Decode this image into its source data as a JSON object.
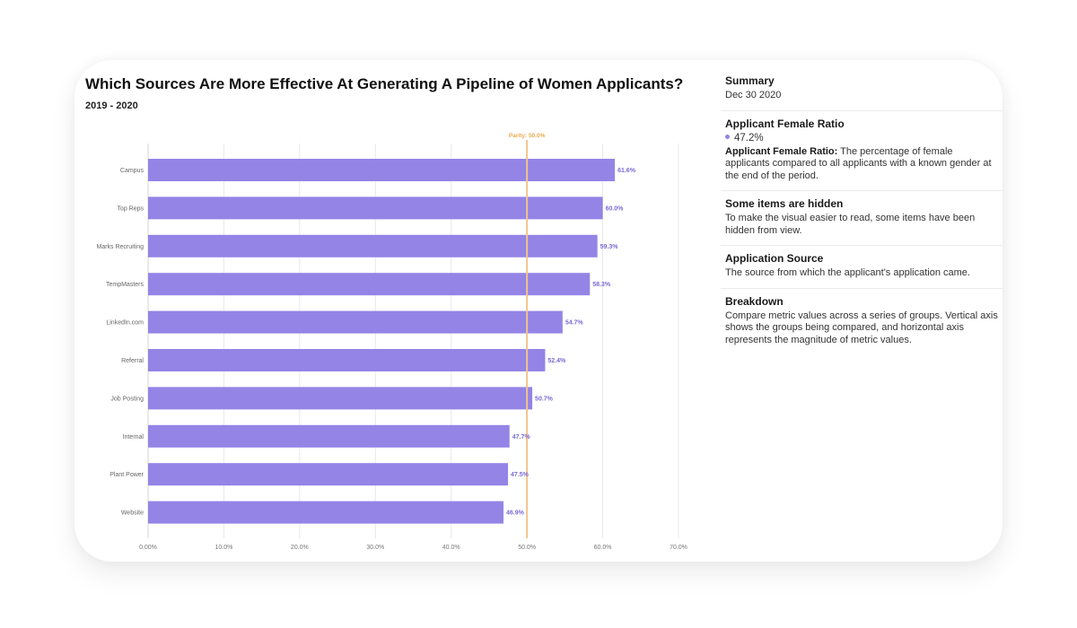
{
  "header": {
    "title": "Which Sources Are More Effective At Generating A Pipeline of Women Applicants?",
    "subtitle": "2019 - 2020"
  },
  "colors": {
    "bar": "#9384e6",
    "bar_label": "#7b6ad6",
    "parity": "#f2c48a",
    "parity_label": "#eaa94c",
    "grid": "#e8e8e8",
    "axis_text": "#777777"
  },
  "chart_data": {
    "type": "bar",
    "orientation": "horizontal",
    "title": "Which Sources Are More Effective At Generating A Pipeline of Women Applicants?",
    "subtitle": "2019 - 2020",
    "xlabel": "",
    "ylabel": "",
    "categories": [
      "Campus",
      "Top Reps",
      "Marks Recruiting",
      "TempMasters",
      "LinkedIn.com",
      "Referral",
      "Job Posting",
      "Internal",
      "Plant Power",
      "Website"
    ],
    "values": [
      61.6,
      60.0,
      59.3,
      58.3,
      54.7,
      52.4,
      50.7,
      47.7,
      47.5,
      46.9
    ],
    "value_labels": [
      "61.6%",
      "60.0%",
      "59.3%",
      "58.3%",
      "54.7%",
      "52.4%",
      "50.7%",
      "47.7%",
      "47.5%",
      "46.9%"
    ],
    "xlim": [
      0,
      70
    ],
    "xticks": [
      0,
      10,
      20,
      30,
      40,
      50,
      60,
      70
    ],
    "xtick_labels": [
      "0.00%",
      "10.0%",
      "20.0%",
      "30.0%",
      "40.0%",
      "50.0%",
      "60.0%",
      "70.0%"
    ],
    "grid": true,
    "reference_line": {
      "value": 50.0,
      "label": "Parity: 50.0%"
    }
  },
  "sidebar": {
    "summary": {
      "title": "Summary",
      "date": "Dec 30 2020"
    },
    "metric": {
      "title": "Applicant Female Ratio",
      "value": "47.2%",
      "definition_term": "Applicant Female Ratio:",
      "definition_text": " The percentage of female applicants compared to all applicants with a known gender at the end of the period."
    },
    "hidden": {
      "title": "Some items are hidden",
      "text": "To make the visual easier to read, some items have been hidden from view."
    },
    "source": {
      "title": "Application Source",
      "text": "The source from which the applicant's application came."
    },
    "breakdown": {
      "title": "Breakdown",
      "text": "Compare metric values across a series of groups. Vertical axis shows the groups being compared, and horizontal axis represents the magnitude of metric values."
    }
  }
}
